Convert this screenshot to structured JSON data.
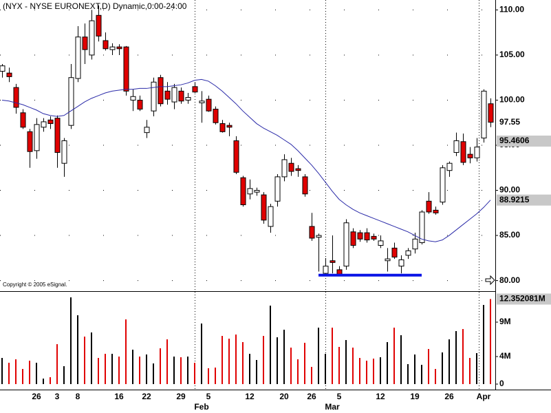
{
  "chart_data": {
    "type": "candlestick",
    "title": "(NYX - NYSE EURONEXT,D) Dynamic,0:00-24:00",
    "copyright": "Copyright © 2005 eSignal.",
    "categories": [
      null,
      null,
      null,
      null,
      null,
      "26",
      null,
      null,
      "3",
      null,
      null,
      "8",
      null,
      null,
      null,
      null,
      null,
      "16",
      null,
      null,
      null,
      "22",
      null,
      null,
      null,
      null,
      "29",
      null,
      null,
      null,
      "5",
      null,
      null,
      null,
      null,
      null,
      "12",
      null,
      null,
      null,
      null,
      "20",
      null,
      null,
      null,
      "26",
      null,
      null,
      null,
      "5",
      null,
      null,
      null,
      null,
      null,
      "12",
      null,
      null,
      null,
      null,
      "19",
      null,
      null,
      null,
      null,
      "26",
      null,
      null,
      null,
      null,
      "Apr",
      null
    ],
    "month_categories": [
      null,
      null,
      null,
      null,
      null,
      null,
      null,
      null,
      null,
      null,
      null,
      null,
      null,
      null,
      null,
      null,
      null,
      null,
      null,
      null,
      null,
      null,
      null,
      null,
      null,
      null,
      null,
      null,
      null,
      "Feb",
      null,
      null,
      null,
      null,
      null,
      null,
      null,
      null,
      null,
      null,
      null,
      null,
      null,
      null,
      null,
      null,
      null,
      null,
      "Mar",
      null,
      null,
      null,
      null,
      null,
      null,
      null,
      null,
      null,
      null,
      null,
      null,
      null,
      null,
      null,
      null,
      null,
      null,
      null,
      null,
      null,
      null,
      null
    ],
    "open": [
      103.2,
      103.0,
      101.4,
      98.6,
      96.5,
      94.4,
      97.0,
      97.8,
      98.0,
      93.0,
      97.2,
      102.4,
      107.0,
      105.0,
      109.4,
      106.6,
      105.6,
      105.9,
      105.9,
      100.0,
      100.0,
      96.4,
      98.8,
      102.5,
      101.0,
      99.8,
      101.0,
      100.0,
      101.5,
      99.7,
      100.1,
      99.0,
      97.4,
      97.2,
      95.5,
      91.4,
      89.6,
      89.8,
      89.5,
      86.0,
      88.8,
      91.5,
      93.0,
      92.4,
      91.5,
      86.0,
      84.8,
      80.8,
      82.2,
      81.2,
      81.6,
      85.4,
      85.3,
      85.3,
      84.9,
      83.9,
      82.2,
      83.6,
      81.6,
      82.8,
      83.5,
      84.2,
      88.8,
      87.8,
      88.7,
      92.2,
      94.2,
      95.4,
      94.0,
      93.6,
      95.8,
      99.6
    ],
    "high": [
      104.0,
      103.6,
      101.8,
      99.0,
      96.8,
      98.0,
      98.0,
      98.2,
      98.3,
      95.8,
      104.0,
      108.2,
      108.5,
      110.0,
      110.5,
      107.5,
      106.3,
      106.2,
      106.0,
      101.2,
      100.5,
      97.8,
      102.5,
      102.8,
      102.0,
      101.8,
      101.4,
      100.8,
      102.0,
      101.0,
      100.5,
      99.3,
      97.8,
      97.5,
      96.0,
      91.6,
      91.2,
      90.3,
      89.8,
      88.5,
      91.8,
      94.0,
      93.6,
      92.8,
      91.8,
      87.5,
      85.2,
      82.5,
      85.0,
      81.6,
      86.8,
      85.8,
      85.6,
      85.8,
      85.2,
      85.0,
      83.6,
      84.2,
      82.8,
      83.6,
      85.3,
      87.8,
      89.8,
      88.2,
      92.8,
      93.2,
      96.4,
      96.3,
      94.8,
      95.8,
      101.2,
      100.2
    ],
    "low": [
      102.5,
      102.0,
      98.5,
      96.8,
      92.5,
      93.5,
      96.5,
      96.8,
      92.5,
      91.5,
      96.8,
      102.0,
      104.0,
      104.5,
      106.5,
      105.5,
      105.0,
      105.0,
      100.5,
      98.8,
      98.8,
      95.8,
      98.2,
      99.3,
      99.5,
      99.0,
      99.6,
      99.6,
      100.8,
      97.5,
      98.7,
      97.3,
      96.4,
      96.0,
      91.8,
      88.2,
      89.0,
      89.4,
      86.3,
      85.3,
      88.2,
      91.0,
      91.6,
      91.5,
      89.3,
      84.4,
      81.0,
      80.5,
      80.8,
      80.6,
      81.2,
      83.6,
      84.3,
      84.2,
      84.4,
      83.6,
      81.0,
      82.4,
      80.8,
      82.4,
      83.0,
      84.0,
      87.4,
      87.3,
      88.4,
      91.5,
      93.8,
      92.8,
      93.0,
      93.2,
      95.3,
      97.0
    ],
    "close": [
      103.8,
      102.6,
      99.2,
      97.0,
      94.3,
      97.3,
      97.6,
      97.4,
      94.2,
      95.5,
      102.5,
      107.0,
      105.6,
      108.8,
      107.1,
      105.7,
      105.9,
      105.7,
      101.0,
      100.4,
      99.0,
      97.0,
      102.0,
      99.6,
      100.1,
      101.4,
      99.9,
      100.3,
      100.9,
      99.9,
      98.8,
      97.5,
      96.5,
      97.0,
      92.0,
      88.4,
      90.2,
      90.0,
      86.7,
      88.2,
      91.5,
      93.4,
      92.1,
      92.2,
      89.6,
      84.7,
      85.0,
      81.6,
      82.0,
      80.7,
      86.4,
      83.9,
      84.6,
      84.5,
      84.6,
      84.4,
      82.4,
      82.6,
      82.3,
      83.3,
      84.6,
      87.6,
      87.6,
      87.5,
      92.5,
      93.0,
      95.5,
      93.1,
      93.6,
      94.8,
      101.0,
      97.55
    ],
    "moving_average": [
      100.0,
      99.9,
      99.7,
      99.5,
      99.2,
      98.9,
      98.5,
      98.3,
      98.2,
      98.3,
      98.8,
      99.3,
      99.8,
      100.2,
      100.5,
      100.8,
      101.0,
      101.1,
      101.2,
      101.2,
      101.3,
      101.3,
      101.4,
      101.5,
      101.5,
      101.6,
      101.7,
      101.9,
      102.2,
      102.3,
      102.1,
      101.6,
      101.0,
      100.3,
      99.6,
      98.8,
      98.1,
      97.4,
      96.9,
      96.5,
      96.1,
      95.6,
      95.1,
      94.4,
      93.6,
      92.8,
      91.9,
      90.9,
      89.9,
      89.0,
      88.4,
      87.9,
      87.5,
      87.2,
      86.9,
      86.6,
      86.3,
      86.0,
      85.7,
      85.4,
      85.0,
      84.6,
      84.4,
      84.3,
      84.5,
      85.0,
      85.6,
      86.2,
      86.8,
      87.4,
      88.1,
      88.9215
    ],
    "moving_average_color": "#2a2aa8",
    "support": [
      null,
      null,
      null,
      null,
      null,
      null,
      null,
      null,
      null,
      null,
      null,
      null,
      null,
      null,
      null,
      null,
      null,
      null,
      null,
      null,
      null,
      null,
      null,
      null,
      null,
      null,
      null,
      null,
      null,
      null,
      null,
      null,
      null,
      null,
      null,
      null,
      null,
      null,
      null,
      null,
      null,
      null,
      null,
      null,
      null,
      null,
      80.6,
      80.6,
      80.6,
      80.6,
      80.6,
      80.6,
      80.6,
      80.6,
      80.6,
      80.6,
      80.6,
      80.6,
      80.6,
      80.6,
      80.6,
      80.6,
      null,
      null,
      null,
      null,
      null,
      null,
      null,
      null,
      null,
      null
    ],
    "support_color": "#0a14e6",
    "up_color": "#ffffff",
    "down_color": "#e00000",
    "volume": [
      3.8,
      3.1,
      3.6,
      2.2,
      3.4,
      3.1,
      0.8,
      1.0,
      5.8,
      2.6,
      12.6,
      10.0,
      6.9,
      7.5,
      3.8,
      4.4,
      4.4,
      4.0,
      9.4,
      5.0,
      4.0,
      4.3,
      3.0,
      5.2,
      6.5,
      4.0,
      3.9,
      4.0,
      3.1,
      8.8,
      2.3,
      2.4,
      7.0,
      6.6,
      7.2,
      6.1,
      4.4,
      3.5,
      7.0,
      11.4,
      6.8,
      7.9,
      5.3,
      3.6,
      6.0,
      2.5,
      8.2,
      4.4,
      8.2,
      5.4,
      6.4,
      5.3,
      3.8,
      3.4,
      3.7,
      3.9,
      6.1,
      8.2,
      7.1,
      2.9,
      4.3,
      2.8,
      5.1,
      2.2,
      4.6,
      6.5,
      7.7,
      8.0,
      3.8,
      4.5,
      11.5,
      12.352081
    ],
    "volume_up_color": "#000000",
    "volume_down_color": "#e00000",
    "ylim": [
      78.9,
      111.1
    ],
    "yticks": [
      {
        "value": 80,
        "label": "80.00"
      },
      {
        "value": 85,
        "label": "85.00"
      },
      {
        "value": 90,
        "label": "90.00"
      },
      {
        "value": 95,
        "label": "95.00"
      },
      {
        "value": 100,
        "label": "100.00"
      },
      {
        "value": 105,
        "label": "105.00"
      },
      {
        "value": 110,
        "label": "110.00"
      }
    ],
    "y2lim": [
      -0.7,
      13.3
    ],
    "y2ticks": [
      0,
      {
        "value": 4,
        "label": "4M"
      },
      {
        "value": 9,
        "label": "9M"
      }
    ],
    "price_markers": [
      {
        "value": 97.55,
        "label": "97.55",
        "color": "#ffffff"
      },
      {
        "value": 95.4606,
        "label": "95.4606",
        "color": "#c8c8c8"
      },
      {
        "value": 88.9215,
        "label": "88.9215",
        "color": "#c8c8c8"
      }
    ],
    "volume_marker": {
      "value": 12.352081,
      "label": "12.352081M",
      "color": "#c8c8c8"
    },
    "grid": true
  }
}
